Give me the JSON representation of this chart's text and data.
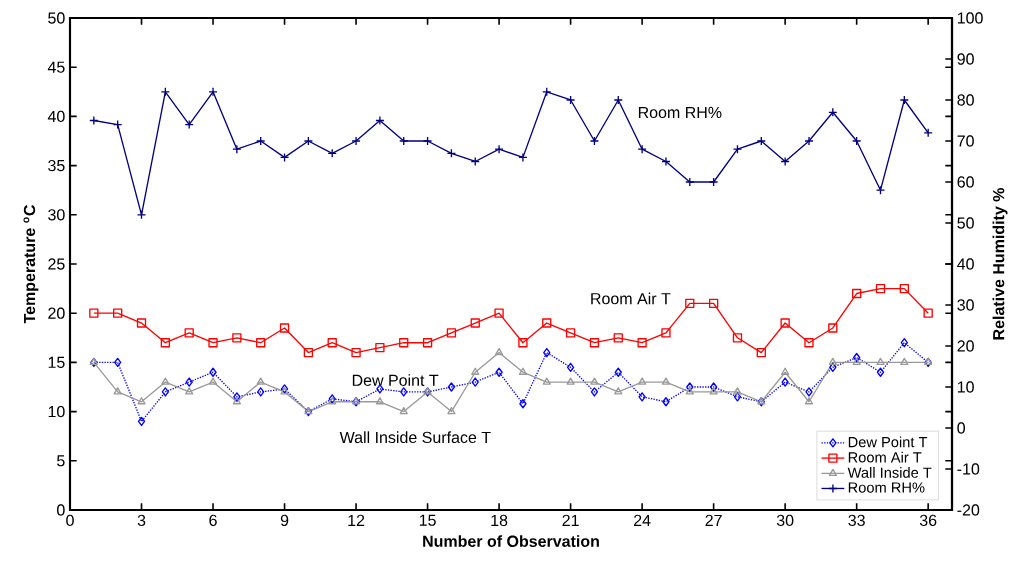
{
  "chart_data": {
    "type": "line",
    "xlabel": "Number of Observation",
    "ylabel": "Temperature $^{o}$C",
    "y2label": "Relative Humidity %",
    "x": [
      1,
      2,
      3,
      4,
      5,
      6,
      7,
      8,
      9,
      10,
      11,
      12,
      13,
      14,
      15,
      16,
      17,
      18,
      19,
      20,
      21,
      22,
      23,
      24,
      25,
      26,
      27,
      28,
      29,
      30,
      31,
      32,
      33,
      34,
      35,
      36
    ],
    "xlim": [
      0,
      37
    ],
    "xticks": [
      0,
      3,
      6,
      9,
      12,
      15,
      18,
      21,
      24,
      27,
      30,
      33,
      36
    ],
    "ylim": [
      0,
      50
    ],
    "yticks": [
      0,
      5,
      10,
      15,
      20,
      25,
      30,
      35,
      40,
      45,
      50
    ],
    "y2lim": [
      -20,
      100
    ],
    "y2ticks": [
      -20,
      -10,
      0,
      10,
      20,
      30,
      40,
      50,
      60,
      70,
      80,
      90,
      100
    ],
    "grid": false,
    "legend": "bottom right",
    "series": [
      {
        "name": "Dew Point T",
        "color": "#0000ff",
        "marker": "diamond",
        "line_style": "dotted",
        "values": [
          15,
          15,
          9,
          12,
          13,
          14,
          11.5,
          12,
          12.3,
          10,
          11.3,
          11,
          12.3,
          12,
          12,
          12.5,
          13,
          14,
          10.8,
          16,
          14.5,
          12,
          14,
          11.5,
          11,
          12.5,
          12.5,
          11.5,
          11,
          13,
          12,
          14.5,
          15.5,
          14,
          17,
          15
        ]
      },
      {
        "name": "Room Air T",
        "color": "#ff0000",
        "marker": "square",
        "line_style": "solid",
        "values": [
          20,
          20,
          19,
          17,
          18,
          17,
          17.5,
          17,
          18.5,
          16,
          17,
          16,
          16.5,
          17,
          17,
          18,
          19,
          20,
          17,
          19,
          18,
          17,
          17.5,
          17,
          18,
          21,
          21,
          17.5,
          16,
          19,
          17,
          18.5,
          22,
          22.5,
          22.5,
          20
        ]
      },
      {
        "name": "Wall Inside T",
        "color": "#999999",
        "marker": "triangle",
        "line_style": "solid",
        "values": [
          15,
          12,
          11,
          13,
          12,
          13,
          11,
          13,
          12,
          10,
          11,
          11,
          11,
          10,
          12,
          10,
          14,
          16,
          14,
          13,
          13,
          13,
          12,
          13,
          13,
          12,
          12,
          12,
          11,
          14,
          11,
          15,
          15,
          15,
          15,
          15
        ]
      },
      {
        "name": "Room RH%",
        "color": "#000080",
        "marker": "cross",
        "line_style": "solid",
        "axis": "y2",
        "values": [
          75,
          74,
          52,
          82,
          74,
          82,
          68,
          70,
          66,
          70,
          67,
          70,
          75,
          70,
          70,
          67,
          65,
          68,
          66,
          82,
          80,
          70,
          80,
          68,
          65,
          60,
          60,
          68,
          70,
          65,
          70,
          77,
          70,
          58,
          80,
          72
        ]
      }
    ],
    "annotations": [
      "Room RH%",
      "Room Air T",
      "Dew Point T",
      "Wall Inside Surface T"
    ]
  }
}
